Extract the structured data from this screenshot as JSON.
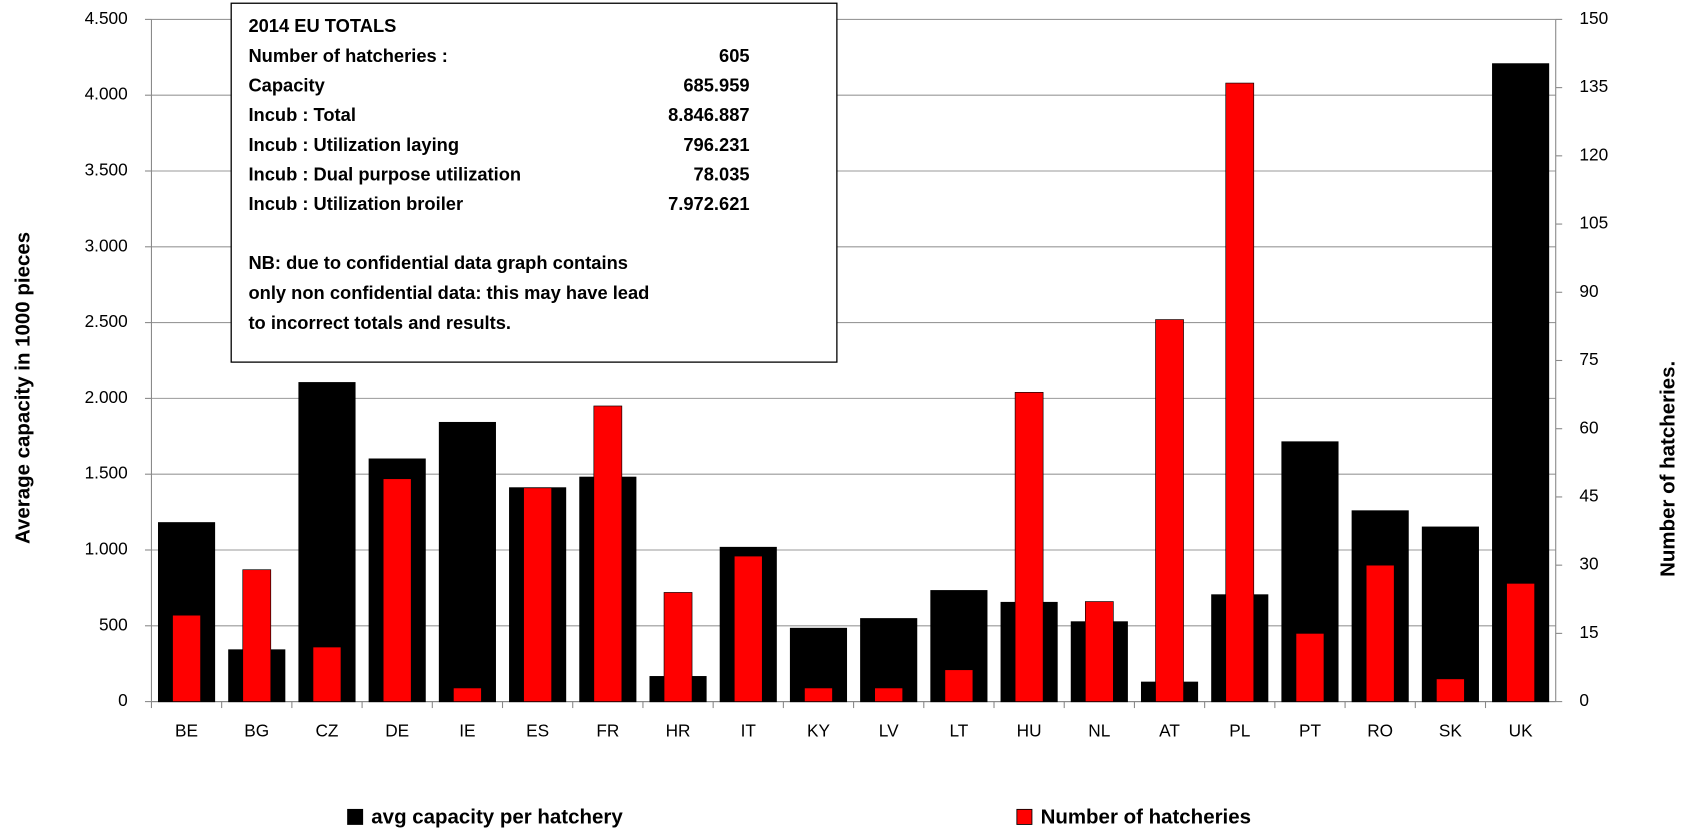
{
  "chart_data": {
    "type": "bar",
    "categories": [
      "BE",
      "BG",
      "CZ",
      "DE",
      "IE",
      "ES",
      "FR",
      "HR",
      "IT",
      "KY",
      "LV",
      "LT",
      "HU",
      "NL",
      "AT",
      "PL",
      "PT",
      "RO",
      "SK",
      "UK"
    ],
    "series": [
      {
        "name": "avg capacity per hatchery",
        "color": "#000000",
        "values": [
          1180,
          341,
          2104,
          1600,
          1841,
          1410,
          1480,
          165,
          1017,
          483,
          547,
          732,
          654,
          526,
          128,
          704,
          1713,
          1258,
          1151,
          4207
        ]
      },
      {
        "name": "Number of hatcheries",
        "color": "#ff0000",
        "axis": "y2",
        "values": [
          19,
          29,
          12,
          49,
          3,
          47,
          65,
          24,
          32,
          3,
          3,
          7,
          68,
          22,
          84,
          136,
          15,
          30,
          5,
          26
        ]
      }
    ],
    "ylabel": "Average capacity in 1000 pieces",
    "y2label": "Number of hatcheries.",
    "ylim": [
      0,
      4500
    ],
    "yticks": [
      0,
      500,
      {
        "value": 1000,
        "label": "1.000"
      },
      {
        "value": 1500,
        "label": "1.500"
      },
      {
        "value": 2000,
        "label": "2.000"
      },
      {
        "value": 2500,
        "label": "2.500"
      },
      {
        "value": 3000,
        "label": "3.000"
      },
      {
        "value": 3500,
        "label": "3.500"
      },
      {
        "value": 4000,
        "label": "4.000"
      },
      {
        "value": 4500,
        "label": "4.500"
      }
    ],
    "y2lim": [
      0,
      150
    ],
    "y2ticks": [
      0,
      15,
      30,
      45,
      60,
      75,
      90,
      105,
      120,
      135,
      150
    ],
    "grid": true,
    "legend": "bottom",
    "info_box": {
      "title": "2014  EU TOTALS",
      "rows": [
        {
          "label": "Number of hatcheries :",
          "value": "605"
        },
        {
          "label": "Capacity",
          "value": "685.959"
        },
        {
          "label": "Incub : Total",
          "value": "8.846.887"
        },
        {
          "label": "Incub : Utilization laying",
          "value": "796.231"
        },
        {
          "label": "Incub : Dual purpose utilization",
          "value": "78.035"
        },
        {
          "label": "Incub : Utilization broiler",
          "value": "7.972.621"
        }
      ],
      "note": [
        "NB: due to confidential data graph contains",
        "only non confidential data: this may have lead",
        "to incorrect totals and results."
      ]
    }
  }
}
